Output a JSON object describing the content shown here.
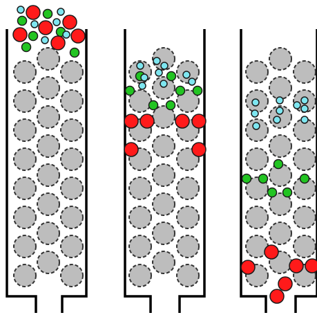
{
  "diagram": {
    "colors": {
      "background": "#ffffff",
      "column_wall": "#000000",
      "packing_bead_fill": "#bdbdbd",
      "packing_bead_stroke": "#333333",
      "large_particle": "#ff1a1a",
      "medium_particle": "#22c422",
      "small_particle": "#7ee6f0",
      "particle_stroke": "#1a1a1a"
    },
    "panels": [
      {
        "name": "column-1",
        "stage": "sample-loaded-on-top"
      },
      {
        "name": "column-2",
        "stage": "separation-beginning"
      },
      {
        "name": "column-3",
        "stage": "separation-progressing"
      }
    ],
    "legend": {
      "large_particle_icon": "red-circle",
      "medium_particle_icon": "green-circle",
      "small_particle_icon": "cyan-circle",
      "packing_icon": "gray-dashed-circle"
    }
  }
}
